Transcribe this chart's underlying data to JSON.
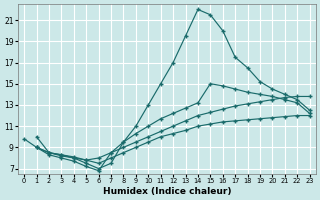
{
  "xlabel": "Humidex (Indice chaleur)",
  "background_color": "#cce8e8",
  "grid_color": "#ffffff",
  "line_color": "#1a6b6b",
  "xlim": [
    -0.5,
    23.5
  ],
  "ylim": [
    6.5,
    22.5
  ],
  "xticks": [
    0,
    1,
    2,
    3,
    4,
    5,
    6,
    7,
    8,
    9,
    10,
    11,
    12,
    13,
    14,
    15,
    16,
    17,
    18,
    19,
    20,
    21,
    22,
    23
  ],
  "yticks": [
    7,
    9,
    11,
    13,
    15,
    17,
    19,
    21
  ],
  "lines": [
    {
      "x": [
        1,
        2,
        3,
        4,
        5,
        6,
        7,
        8,
        9,
        10,
        11,
        12,
        13,
        14,
        15,
        16,
        17,
        18,
        19,
        20,
        21,
        22,
        23
      ],
      "y": [
        10,
        8.5,
        8.2,
        8.0,
        7.5,
        7.0,
        7.5,
        9.5,
        11.0,
        13.0,
        15.0,
        17.0,
        19.5,
        22.0,
        21.5,
        20.0,
        17.5,
        16.5,
        15.2,
        14.5,
        14.0,
        13.5,
        12.5
      ]
    },
    {
      "x": [
        1,
        2,
        3,
        4,
        5,
        6,
        7,
        8,
        9,
        10,
        11,
        12,
        13,
        14,
        15,
        16,
        17,
        18,
        19,
        20,
        21,
        22,
        23
      ],
      "y": [
        9.0,
        8.3,
        8.0,
        7.7,
        7.2,
        6.8,
        8.5,
        9.5,
        10.3,
        11.0,
        11.7,
        12.2,
        12.7,
        13.2,
        15.0,
        14.8,
        14.5,
        14.2,
        14.0,
        13.8,
        13.5,
        13.2,
        12.2
      ]
    },
    {
      "x": [
        1,
        2,
        3,
        4,
        5,
        6,
        7,
        8,
        9,
        10,
        11,
        12,
        13,
        14,
        15,
        16,
        17,
        18,
        19,
        20,
        21,
        22,
        23
      ],
      "y": [
        9.0,
        8.5,
        8.3,
        8.1,
        7.8,
        8.0,
        8.5,
        9.0,
        9.5,
        10.0,
        10.5,
        11.0,
        11.5,
        12.0,
        12.3,
        12.6,
        12.9,
        13.1,
        13.3,
        13.5,
        13.7,
        13.8,
        13.8
      ]
    },
    {
      "x": [
        0,
        1,
        2,
        3,
        4,
        5,
        6,
        7,
        8,
        9,
        10,
        11,
        12,
        13,
        14,
        15,
        16,
        17,
        18,
        19,
        20,
        21,
        22,
        23
      ],
      "y": [
        9.8,
        9.0,
        8.5,
        8.3,
        8.0,
        7.8,
        7.5,
        8.0,
        8.5,
        9.0,
        9.5,
        10.0,
        10.3,
        10.6,
        11.0,
        11.2,
        11.4,
        11.5,
        11.6,
        11.7,
        11.8,
        11.9,
        12.0,
        12.0
      ]
    }
  ]
}
